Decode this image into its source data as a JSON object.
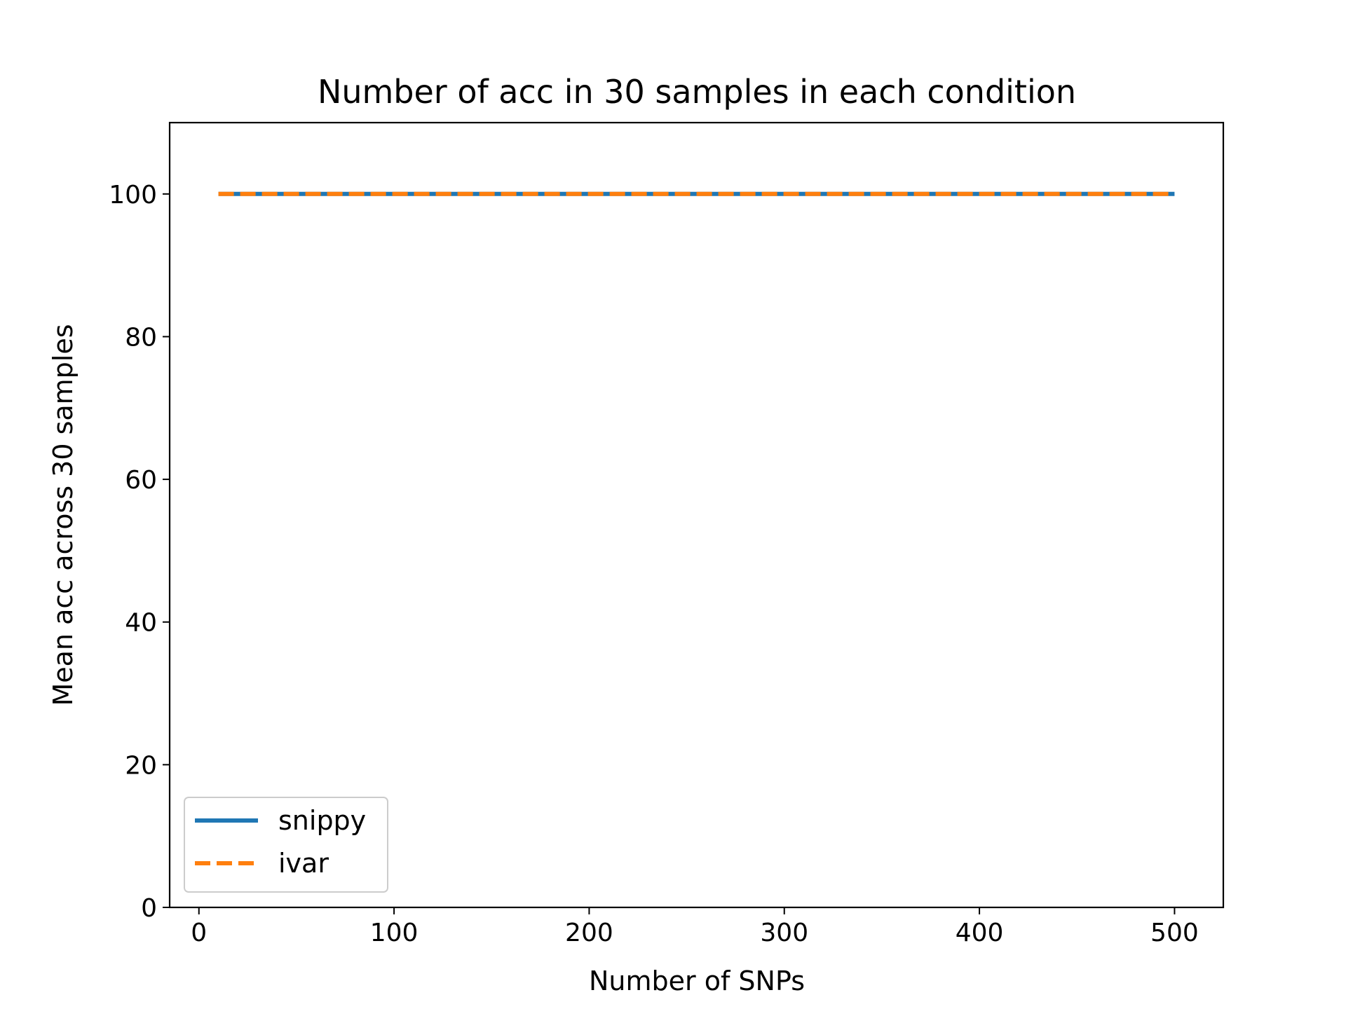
{
  "chart_data": {
    "type": "line",
    "title": "Number of acc in 30 samples in each condition",
    "xlabel": "Number of SNPs",
    "ylabel": "Mean acc across 30 samples",
    "xlim": [
      -15,
      525
    ],
    "ylim": [
      0,
      110
    ],
    "xticks": [
      0,
      100,
      200,
      300,
      400,
      500
    ],
    "yticks": [
      0,
      20,
      40,
      60,
      80,
      100
    ],
    "grid": false,
    "legend_position": "lower-left",
    "series": [
      {
        "name": "snippy",
        "color": "#1f77b4",
        "line_style": "solid",
        "x": [
          10,
          20,
          30,
          40,
          50,
          60,
          70,
          80,
          90,
          100,
          150,
          200,
          250,
          300,
          350,
          400,
          450,
          500
        ],
        "y": [
          100,
          100,
          100,
          100,
          100,
          100,
          100,
          100,
          100,
          100,
          100,
          100,
          100,
          100,
          100,
          100,
          100,
          100
        ]
      },
      {
        "name": "ivar",
        "color": "#ff7f0e",
        "line_style": "dashed",
        "x": [
          10,
          20,
          30,
          40,
          50,
          60,
          70,
          80,
          90,
          100,
          150,
          200,
          250,
          300,
          350,
          400,
          450,
          500
        ],
        "y": [
          100,
          100,
          100,
          100,
          100,
          100,
          100,
          100,
          100,
          100,
          100,
          100,
          100,
          100,
          100,
          100,
          100,
          100
        ]
      }
    ]
  }
}
